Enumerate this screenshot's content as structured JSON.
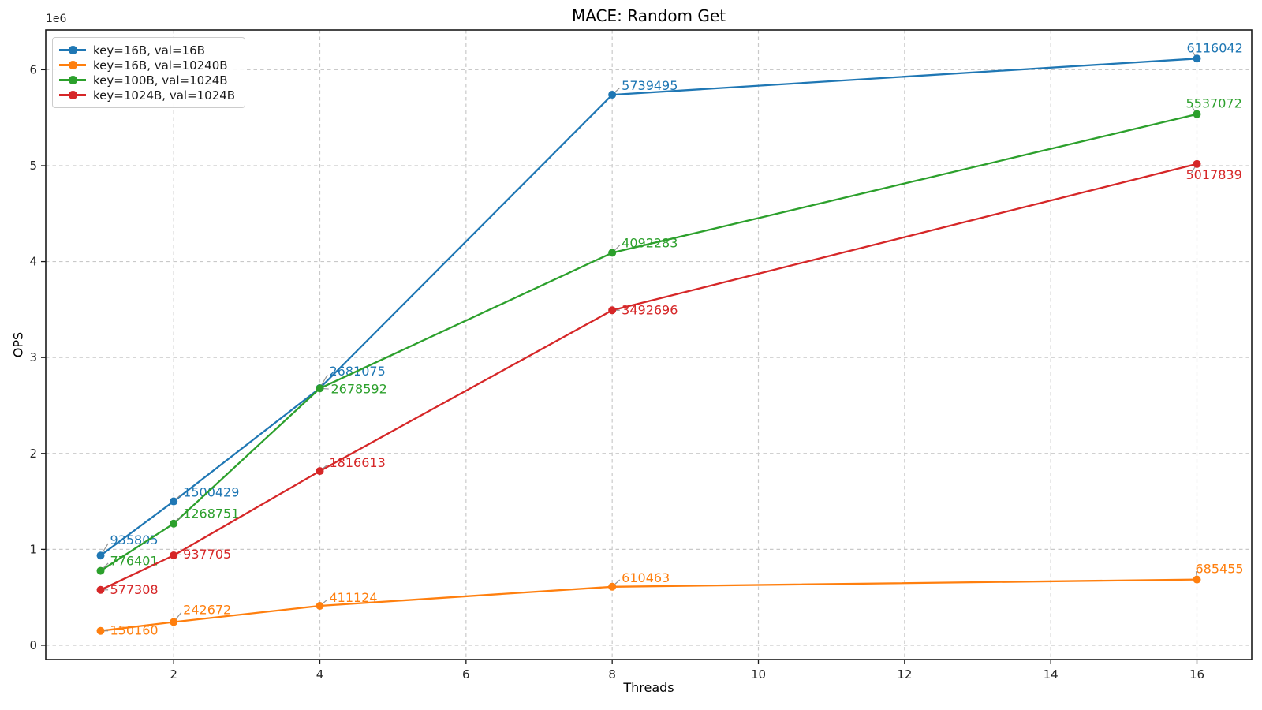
{
  "chart_data": {
    "type": "line",
    "title": "MACE: Random Get",
    "xlabel": "Threads",
    "ylabel": "OPS",
    "y_offset_text": "1e6",
    "grid": true,
    "grid_style": "dashed",
    "legend_position": "upper left",
    "background_color": "#ffffff",
    "x": [
      1,
      2,
      4,
      8,
      16
    ],
    "series": [
      {
        "name": "key=16B, val=16B",
        "color": "#1f77b4",
        "values": [
          935805,
          1500429,
          2681075,
          5739495,
          6116042
        ],
        "label_offsets": [
          [
            12,
            -14
          ],
          [
            12,
            -6
          ],
          [
            12,
            -16
          ],
          [
            12,
            -6
          ],
          [
            -13,
            -8
          ]
        ]
      },
      {
        "name": "key=16B, val=10240B",
        "color": "#ff7f0e",
        "values": [
          150160,
          242672,
          411124,
          610463,
          685455
        ],
        "label_offsets": [
          [
            12,
            5
          ],
          [
            12,
            -10
          ],
          [
            12,
            -5
          ],
          [
            12,
            -6
          ],
          [
            -2,
            -8
          ]
        ]
      },
      {
        "name": "key=100B, val=1024B",
        "color": "#2ca02c",
        "values": [
          776401,
          1268751,
          2678592,
          4092283,
          5537072
        ],
        "label_offsets": [
          [
            12,
            -7
          ],
          [
            12,
            -7
          ],
          [
            14,
            6
          ],
          [
            12,
            -7
          ],
          [
            -14,
            -8
          ]
        ]
      },
      {
        "name": "key=1024B, val=1024B",
        "color": "#d62728",
        "values": [
          577308,
          937705,
          1816613,
          3492696,
          5017839
        ],
        "label_offsets": [
          [
            12,
            5
          ],
          [
            12,
            4
          ],
          [
            12,
            -5
          ],
          [
            12,
            5
          ],
          [
            -14,
            19
          ]
        ]
      }
    ],
    "xlim": [
      0.25,
      16.75
    ],
    "ylim": [
      -148134,
      6414336
    ],
    "x_ticks": [
      2,
      4,
      6,
      8,
      10,
      12,
      14,
      16
    ],
    "x_tick_labels": [
      "2",
      "4",
      "6",
      "8",
      "10",
      "12",
      "14",
      "16"
    ],
    "y_ticks": [
      0,
      1000000,
      2000000,
      3000000,
      4000000,
      5000000,
      6000000
    ],
    "y_tick_labels": [
      "0",
      "1",
      "2",
      "3",
      "4",
      "5",
      "6"
    ]
  }
}
